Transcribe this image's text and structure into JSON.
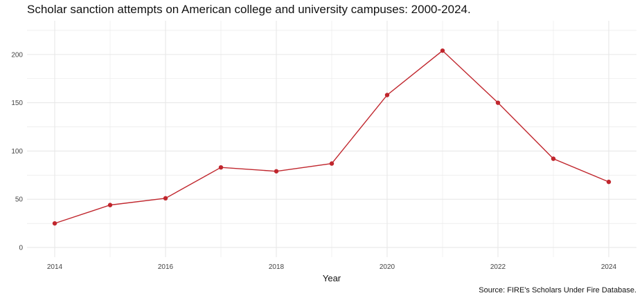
{
  "chart_data": {
    "type": "line",
    "title": "Scholar sanction attempts on American college and university campuses: 2000-2024.",
    "caption": "Source: FIRE's Scholars Under Fire Database.",
    "xlabel": "Year",
    "ylabel": "",
    "x": [
      2014,
      2015,
      2016,
      2017,
      2018,
      2019,
      2020,
      2021,
      2022,
      2023,
      2024
    ],
    "series": [
      {
        "values": [
          25,
          44,
          51,
          83,
          79,
          87,
          158,
          204,
          150,
          92,
          68
        ]
      }
    ],
    "x_ticks": [
      "2014",
      "2016",
      "2018",
      "2020",
      "2022",
      "2024"
    ],
    "y_ticks": [
      "0",
      "50",
      "100",
      "150",
      "200"
    ],
    "xlim": [
      2013.5,
      2024.5
    ],
    "ylim": [
      -10,
      235
    ],
    "grid": true,
    "colors": {
      "line": "#c0262d",
      "grid": "#e6e6e6"
    }
  }
}
